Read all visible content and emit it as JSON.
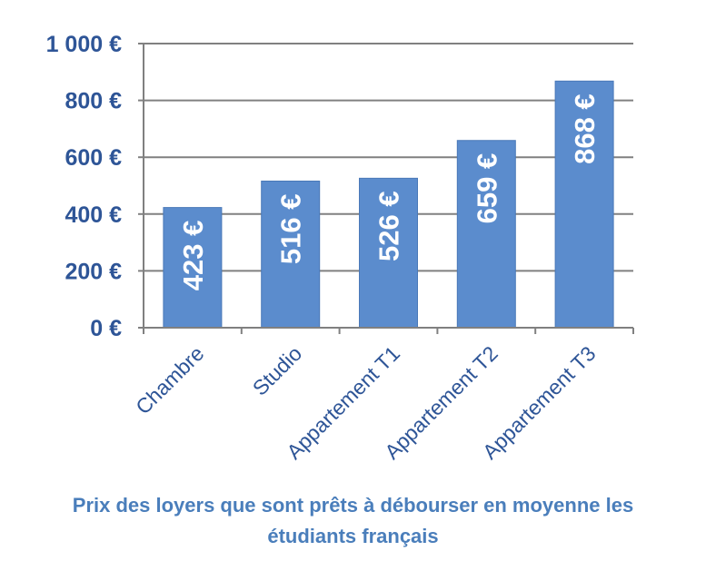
{
  "chart_data": {
    "type": "bar",
    "categories": [
      "Chambre",
      "Studio",
      "Appartement T1",
      "Appartement T2",
      "Appartement T3"
    ],
    "values": [
      423,
      516,
      526,
      659,
      868
    ],
    "data_labels": [
      "423 €",
      "516 €",
      "526 €",
      "659 €",
      "868 €"
    ],
    "y_tick_values": [
      0,
      200,
      400,
      600,
      800,
      1000
    ],
    "y_tick_labels": [
      "0 €",
      "200 €",
      "400 €",
      "600 €",
      "800 €",
      "1 000 €"
    ],
    "ylim": [
      0,
      1000
    ],
    "grid": true,
    "legend": "none",
    "title_lines": [
      "Prix des loyers que sont prêts à débourser en moyenne les",
      "étudiants français"
    ],
    "colors": {
      "bar": "#5b8ccd",
      "bar_edge": "#4a79b8",
      "axis_text": "#2e5597",
      "title": "#4a7ebb",
      "grid": "#808080",
      "data_label": "#ffffff"
    }
  }
}
